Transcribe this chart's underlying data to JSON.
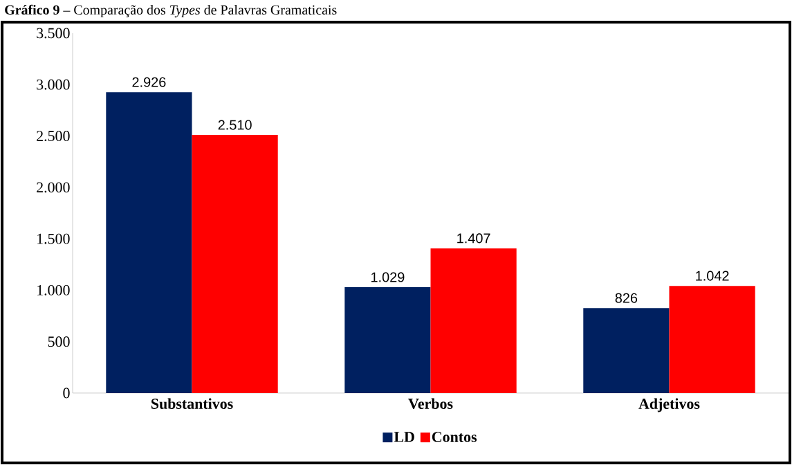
{
  "chart_data": {
    "type": "bar",
    "title": "**Gráfico 9** – Comparação dos *Types* de Palavras Gramaticais",
    "categories": [
      "**Substantivos**",
      "**Verbos**",
      "**Adjetivos**"
    ],
    "series": [
      {
        "name": "**LD**",
        "color": "#002060",
        "values": [
          2926,
          1029,
          826
        ],
        "value_labels": [
          "2.926",
          "1.029",
          "826"
        ]
      },
      {
        "name": "**Contos**",
        "color": "#ff0000",
        "values": [
          2510,
          1407,
          1042
        ],
        "value_labels": [
          "2.510",
          "1.407",
          "1.042"
        ]
      }
    ],
    "ylim": [
      0,
      3500
    ],
    "yticks": [
      {
        "value": 0,
        "label": "0"
      },
      {
        "value": 500,
        "label": "500"
      },
      {
        "value": 1000,
        "label": "1.000"
      },
      {
        "value": 1500,
        "label": "1.500"
      },
      {
        "value": 2000,
        "label": "2.000"
      },
      {
        "value": 2500,
        "label": "2.500"
      },
      {
        "value": 3000,
        "label": "3.000"
      },
      {
        "value": 3500,
        "label": "3.500"
      }
    ],
    "legend": "bottom"
  }
}
